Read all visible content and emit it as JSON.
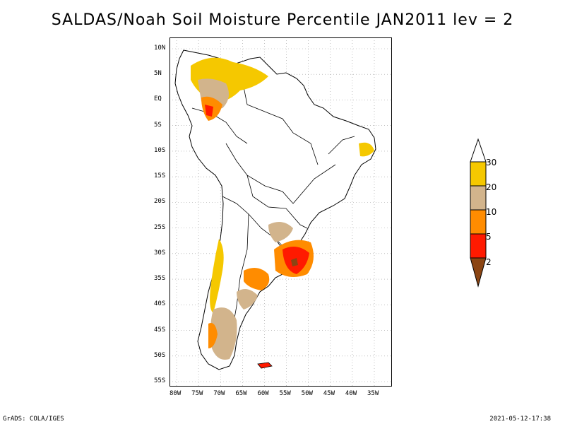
{
  "title": "SALDAS/Noah Soil Moisture Percentile JAN2011 lev = 2",
  "map": {
    "lat_ticks": [
      "10N",
      "5N",
      "EQ",
      "5S",
      "10S",
      "15S",
      "20S",
      "25S",
      "30S",
      "35S",
      "40S",
      "45S",
      "50S",
      "55S"
    ],
    "lon_ticks": [
      "80W",
      "75W",
      "70W",
      "65W",
      "60W",
      "55W",
      "50W",
      "45W",
      "40W",
      "35W"
    ],
    "region": "South America",
    "land_color": "#ffffff",
    "grid_style": "dotted"
  },
  "legend": {
    "labels": [
      "30",
      "20",
      "10",
      "5",
      "2"
    ],
    "colors": {
      "above_30": "#ffffff",
      "20_30": "#f5c800",
      "10_20": "#d2b48c",
      "5_10": "#ff8c00",
      "2_5": "#ff1a00",
      "below_2": "#8b4513"
    }
  },
  "footer": {
    "left": "GrADS: COLA/IGES",
    "right": "2021-05-12-17:38"
  }
}
